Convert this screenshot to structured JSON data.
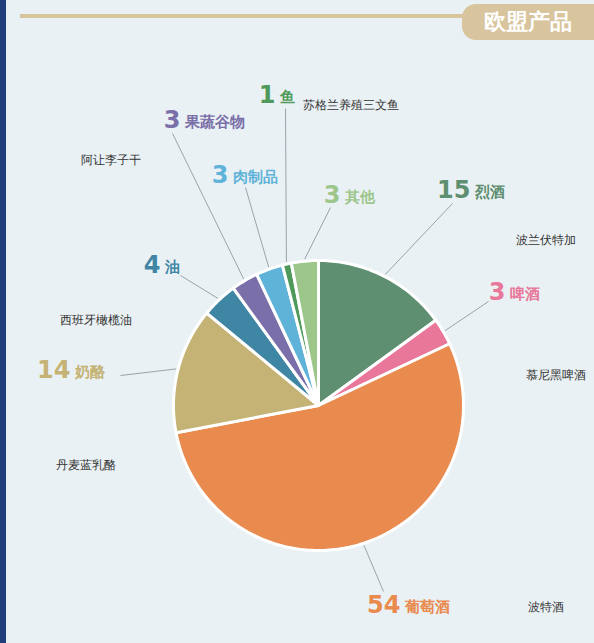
{
  "chart_data": {
    "type": "pie",
    "title": "欧盟产品",
    "categories": [
      "烈酒",
      "啤酒",
      "葡萄酒",
      "奶酪",
      "油",
      "果蔬谷物",
      "肉制品",
      "鱼",
      "其他"
    ],
    "values": [
      15,
      3,
      54,
      14,
      4,
      3,
      3,
      1,
      3
    ],
    "colors": [
      "#5e8f70",
      "#e8779a",
      "#e98a4e",
      "#c4b374",
      "#3f86a5",
      "#7a6fa8",
      "#5fb3d8",
      "#4f9a5a",
      "#9cc68a"
    ],
    "product_examples": [
      "波兰伏特加",
      "慕尼黑啤酒",
      "波特酒",
      "丹麦蓝乳酪",
      "西班牙橄榄油",
      "阿让李子干",
      null,
      "苏格兰养殖三文鱼",
      null
    ],
    "data_labels": true
  }
}
